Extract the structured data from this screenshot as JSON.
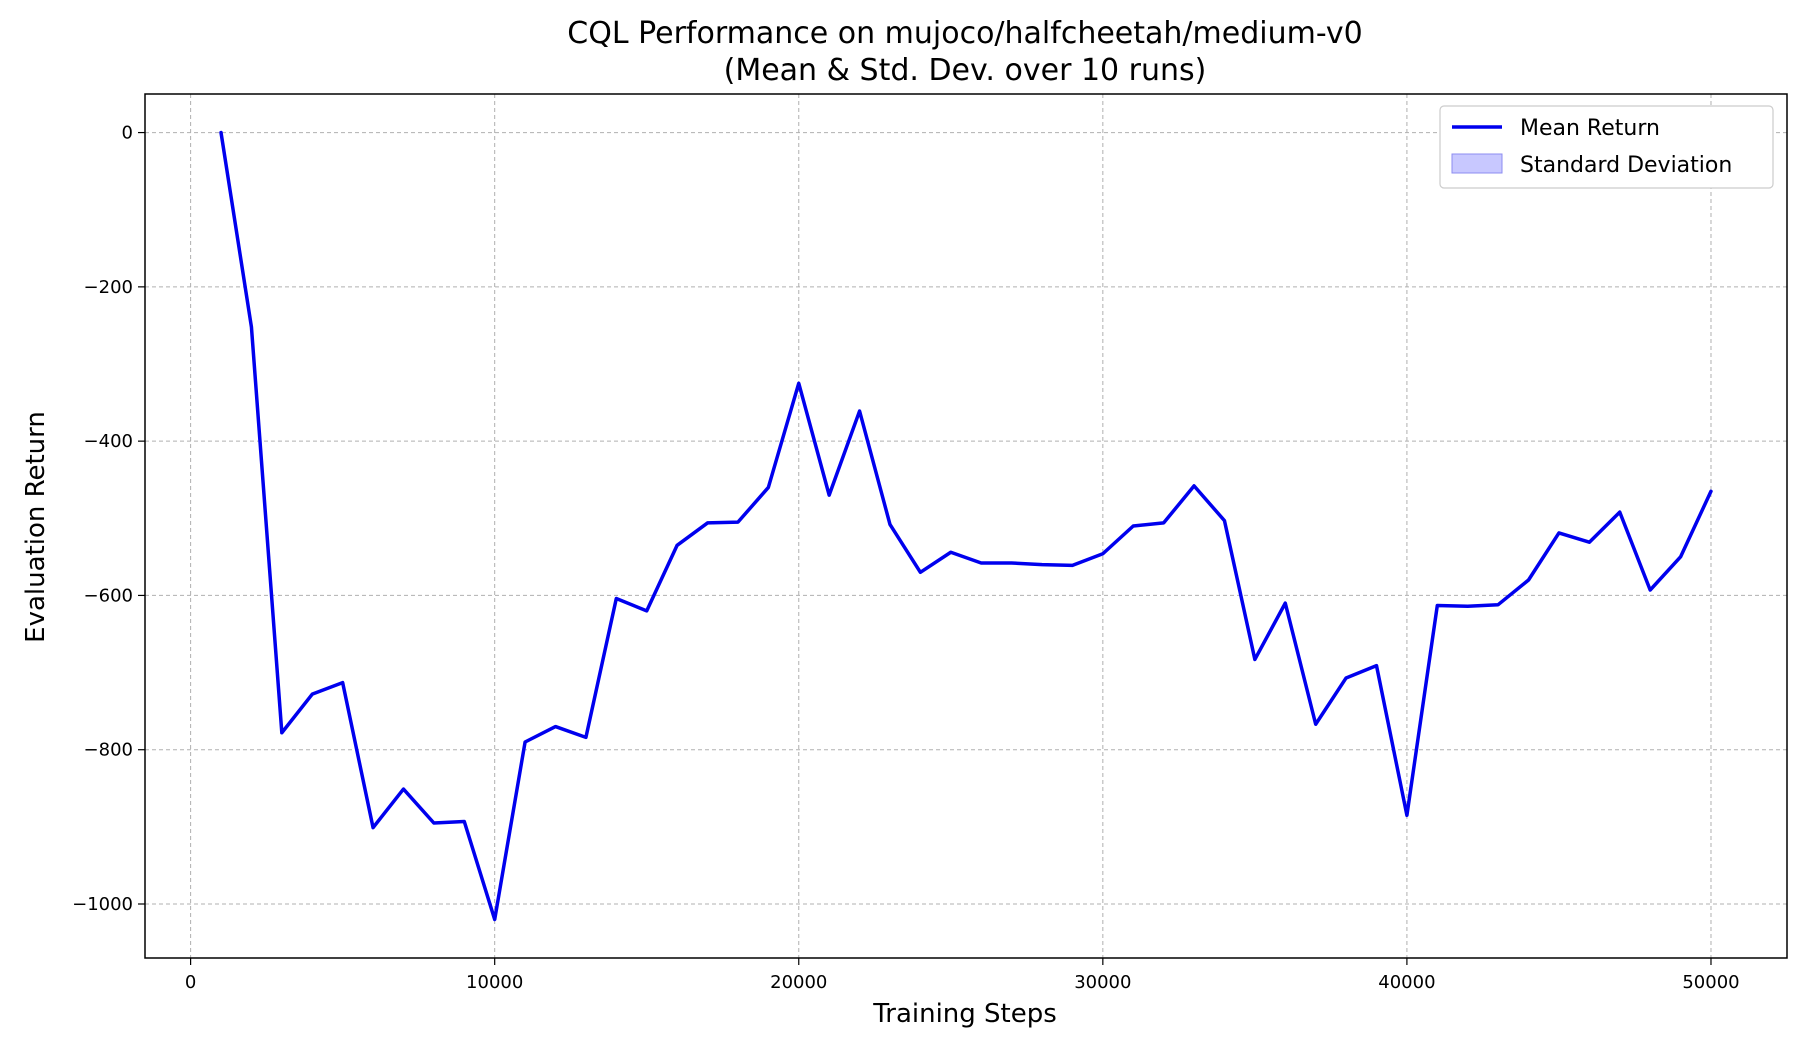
{
  "chart_data": {
    "type": "line",
    "title_line1": "CQL Performance on mujoco/halfcheetah/medium-v0",
    "title_line2": "(Mean & Std. Dev. over 10 runs)",
    "xlabel": "Training Steps",
    "ylabel": "Evaluation Return",
    "xlim": [
      -1500,
      52500
    ],
    "ylim": [
      -1070,
      50
    ],
    "xticks": [
      0,
      10000,
      20000,
      30000,
      40000,
      50000
    ],
    "yticks": [
      0,
      -200,
      -400,
      -600,
      -800,
      -1000
    ],
    "xtick_labels": [
      "0",
      "10000",
      "20000",
      "30000",
      "40000",
      "50000"
    ],
    "ytick_labels": [
      "0",
      "−200",
      "−400",
      "−600",
      "−800",
      "−1000"
    ],
    "grid": true,
    "legend_position": "top-right",
    "legend": {
      "mean_label": "Mean Return",
      "std_label": "Standard Deviation"
    },
    "colors": {
      "line": "#0000ee",
      "band_fill": "#c8c8ff",
      "band_edge": "#8c8cf0"
    },
    "series": [
      {
        "name": "Mean Return",
        "x": [
          1000,
          2000,
          3000,
          4000,
          5000,
          6000,
          7000,
          8000,
          9000,
          10000,
          11000,
          12000,
          13000,
          14000,
          15000,
          16000,
          17000,
          18000,
          19000,
          20000,
          21000,
          22000,
          23000,
          24000,
          25000,
          26000,
          27000,
          28000,
          29000,
          30000,
          31000,
          32000,
          33000,
          34000,
          35000,
          36000,
          37000,
          38000,
          39000,
          40000,
          41000,
          42000,
          43000,
          44000,
          45000,
          46000,
          47000,
          48000,
          49000,
          50000
        ],
        "y": [
          0,
          -252,
          -778,
          -728,
          -713,
          -901,
          -851,
          -895,
          -893,
          -1020,
          -790,
          -770,
          -784,
          -604,
          -620,
          -535,
          -506,
          -505,
          -460,
          -325,
          -470,
          -361,
          -508,
          -570,
          -544,
          -558,
          -558,
          -560,
          -561,
          -546,
          -510,
          -506,
          -458,
          -503,
          -683,
          -610,
          -767,
          -707,
          -691,
          -885,
          -613,
          -614,
          -612,
          -580,
          -519,
          -531,
          -492,
          -593,
          -550,
          -465
        ]
      }
    ]
  }
}
